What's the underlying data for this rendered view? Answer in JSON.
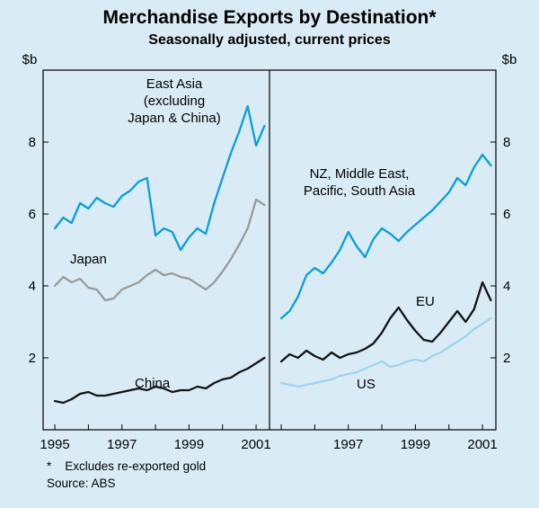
{
  "title": "Merchandise Exports by Destination*",
  "subtitle": "Seasonally adjusted, current prices",
  "y_axis_unit_left": "$b",
  "y_axis_unit_right": "$b",
  "footnote": "*    Excludes re-exported gold",
  "source": "Source: ABS",
  "labels": {
    "east_asia": "East Asia\n(excluding\nJapan & China)",
    "japan": "Japan",
    "china": "China",
    "nz": "NZ, Middle East,\nPacific, South Asia",
    "eu": "EU",
    "us": "US"
  },
  "colors": {
    "background": "#d9ecf6",
    "axis": "#000000",
    "blue_series": "#0a9ed9",
    "gray_series": "#9a9a9a",
    "black_series": "#141414",
    "light_blue_series": "#9fd3ec"
  },
  "chart_data": [
    {
      "type": "line",
      "panel": "left",
      "title": "",
      "xlabel": "",
      "ylabel": "$b",
      "ylim": [
        0,
        10
      ],
      "y_ticks": [
        2,
        4,
        6,
        8
      ],
      "x_ticks": [
        1995,
        1997,
        1999,
        2001
      ],
      "x": [
        1995.0,
        1995.25,
        1995.5,
        1995.75,
        1996.0,
        1996.25,
        1996.5,
        1996.75,
        1997.0,
        1997.25,
        1997.5,
        1997.75,
        1998.0,
        1998.25,
        1998.5,
        1998.75,
        1999.0,
        1999.25,
        1999.5,
        1999.75,
        2000.0,
        2000.25,
        2000.5,
        2000.75,
        2001.0,
        2001.25
      ],
      "series": [
        {
          "name": "East Asia (excluding Japan & China)",
          "color": "#0a9ed9",
          "values": [
            5.6,
            5.9,
            5.75,
            6.3,
            6.15,
            6.45,
            6.3,
            6.2,
            6.5,
            6.65,
            6.9,
            7.0,
            5.4,
            5.6,
            5.5,
            5.0,
            5.35,
            5.6,
            5.45,
            6.3,
            7.0,
            7.7,
            8.3,
            9.0,
            7.9,
            8.45
          ]
        },
        {
          "name": "Japan",
          "color": "#9a9a9a",
          "values": [
            4.0,
            4.25,
            4.1,
            4.2,
            3.95,
            3.9,
            3.6,
            3.65,
            3.9,
            4.0,
            4.1,
            4.3,
            4.45,
            4.3,
            4.35,
            4.25,
            4.2,
            4.05,
            3.9,
            4.1,
            4.4,
            4.75,
            5.15,
            5.6,
            6.4,
            6.25
          ]
        },
        {
          "name": "China",
          "color": "#141414",
          "values": [
            0.8,
            0.75,
            0.85,
            1.0,
            1.05,
            0.95,
            0.95,
            1.0,
            1.05,
            1.1,
            1.15,
            1.1,
            1.2,
            1.15,
            1.05,
            1.1,
            1.1,
            1.2,
            1.15,
            1.3,
            1.4,
            1.45,
            1.6,
            1.7,
            1.85,
            2.0
          ]
        }
      ]
    },
    {
      "type": "line",
      "panel": "right",
      "title": "",
      "xlabel": "",
      "ylabel": "$b",
      "ylim": [
        0,
        10
      ],
      "y_ticks": [
        2,
        4,
        6,
        8
      ],
      "x_ticks": [
        1997,
        1999,
        2001
      ],
      "x": [
        1995.0,
        1995.25,
        1995.5,
        1995.75,
        1996.0,
        1996.25,
        1996.5,
        1996.75,
        1997.0,
        1997.25,
        1997.5,
        1997.75,
        1998.0,
        1998.25,
        1998.5,
        1998.75,
        1999.0,
        1999.25,
        1999.5,
        1999.75,
        2000.0,
        2000.25,
        2000.5,
        2000.75,
        2001.0,
        2001.25
      ],
      "series": [
        {
          "name": "NZ, Middle East, Pacific, South Asia",
          "color": "#0a9ed9",
          "values": [
            3.1,
            3.3,
            3.7,
            4.3,
            4.5,
            4.35,
            4.65,
            5.0,
            5.5,
            5.1,
            4.8,
            5.3,
            5.6,
            5.45,
            5.25,
            5.5,
            5.7,
            5.9,
            6.1,
            6.35,
            6.6,
            7.0,
            6.8,
            7.3,
            7.65,
            7.35
          ]
        },
        {
          "name": "EU",
          "color": "#141414",
          "values": [
            1.9,
            2.1,
            2.0,
            2.2,
            2.05,
            1.95,
            2.15,
            2.0,
            2.1,
            2.15,
            2.25,
            2.4,
            2.7,
            3.1,
            3.4,
            3.05,
            2.75,
            2.5,
            2.45,
            2.7,
            3.0,
            3.3,
            3.0,
            3.35,
            4.1,
            3.6
          ]
        },
        {
          "name": "US",
          "color": "#9fd3ec",
          "values": [
            1.3,
            1.25,
            1.2,
            1.25,
            1.3,
            1.35,
            1.4,
            1.5,
            1.55,
            1.6,
            1.7,
            1.8,
            1.9,
            1.75,
            1.8,
            1.9,
            1.95,
            1.9,
            2.05,
            2.15,
            2.3,
            2.45,
            2.6,
            2.8,
            2.95,
            3.1
          ]
        }
      ]
    }
  ]
}
